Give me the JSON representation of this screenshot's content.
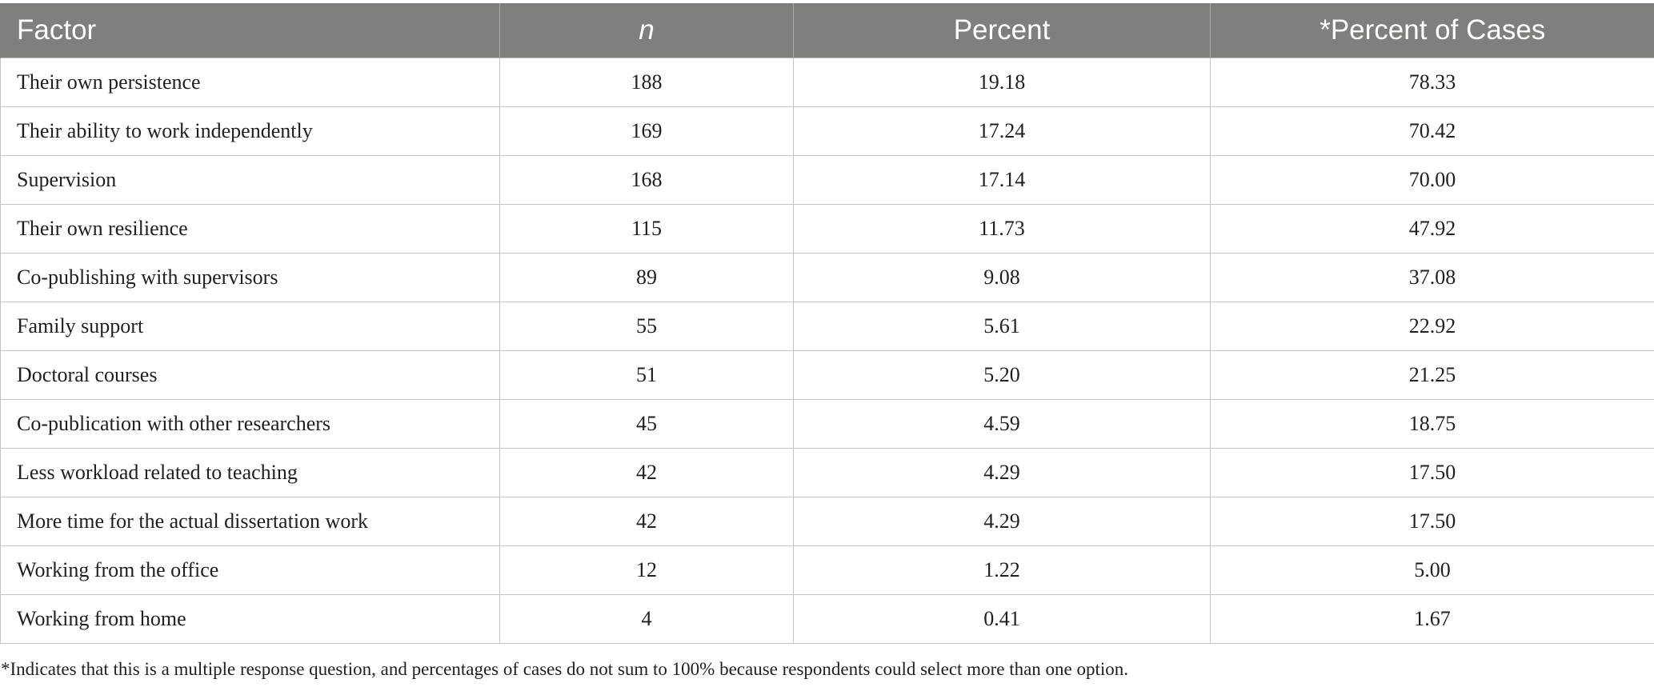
{
  "table": {
    "headers": [
      "Factor",
      "n",
      "Percent",
      "*Percent of Cases"
    ],
    "rows": [
      [
        "Their own persistence",
        "188",
        "19.18",
        "78.33"
      ],
      [
        "Their ability to work independently",
        "169",
        "17.24",
        "70.42"
      ],
      [
        "Supervision",
        "168",
        "17.14",
        "70.00"
      ],
      [
        "Their own resilience",
        "115",
        "11.73",
        "47.92"
      ],
      [
        "Co-publishing with supervisors",
        "89",
        "9.08",
        "37.08"
      ],
      [
        "Family support",
        "55",
        "5.61",
        "22.92"
      ],
      [
        "Doctoral courses",
        "51",
        "5.20",
        "21.25"
      ],
      [
        "Co-publication with other researchers",
        "45",
        "4.59",
        "18.75"
      ],
      [
        "Less workload related to teaching",
        "42",
        "4.29",
        "17.50"
      ],
      [
        "More time for the actual dissertation work",
        "42",
        "4.29",
        "17.50"
      ],
      [
        "Working from the office",
        "12",
        "1.22",
        "5.00"
      ],
      [
        "Working from home",
        "4",
        "0.41",
        "1.67"
      ]
    ]
  },
  "footnote": "*Indicates that this is a multiple response question, and percentages of cases do not sum to 100% because respondents could select more than one option.",
  "colors": {
    "header_bg": "#7f7f7e",
    "header_text": "#ffffff",
    "grid": "#c4c4c4"
  }
}
